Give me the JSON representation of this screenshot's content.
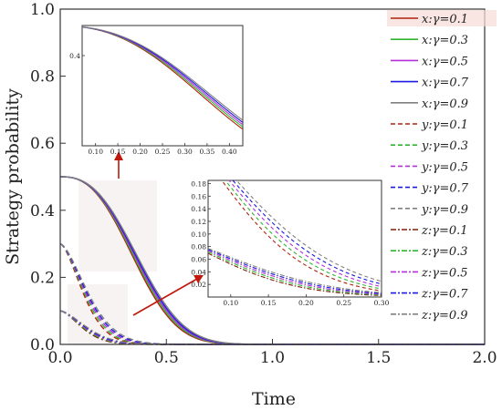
{
  "chart_data": {
    "type": "line",
    "xlabel": "Time",
    "ylabel": "Strategy probability",
    "xlim": [
      0,
      2
    ],
    "ylim": [
      0,
      1
    ],
    "xticks": [
      0.0,
      0.5,
      1.0,
      1.5,
      2.0
    ],
    "xtick_labels": [
      "0.0",
      "0.5",
      "1.0",
      "1.5",
      "2.0"
    ],
    "yticks": [
      0.0,
      0.2,
      0.4,
      0.6,
      0.8,
      1.0
    ],
    "ytick_labels": [
      "0.0",
      "0.2",
      "0.4",
      "0.6",
      "0.8",
      "1.0"
    ],
    "grid": false,
    "legend_position": "right",
    "series": [
      {
        "name": "x:γ=0.1",
        "group": "x",
        "gamma": 0.1,
        "color": "#b0220e",
        "dash": "solid",
        "x0": 0.5,
        "k": 0.31,
        "n": 2.6,
        "highlight": true
      },
      {
        "name": "x:γ=0.3",
        "group": "x",
        "gamma": 0.3,
        "color": "#2fb52f",
        "dash": "solid",
        "x0": 0.5,
        "k": 0.315,
        "n": 2.6,
        "highlight": false
      },
      {
        "name": "x:γ=0.5",
        "group": "x",
        "gamma": 0.5,
        "color": "#b52fd9",
        "dash": "solid",
        "x0": 0.5,
        "k": 0.32,
        "n": 2.6,
        "highlight": false
      },
      {
        "name": "x:γ=0.7",
        "group": "x",
        "gamma": 0.7,
        "color": "#1a1ae0",
        "dash": "solid",
        "x0": 0.5,
        "k": 0.325,
        "n": 2.6,
        "highlight": false
      },
      {
        "name": "x:γ=0.9",
        "group": "x",
        "gamma": 0.9,
        "color": "#808080",
        "dash": "solid",
        "x0": 0.5,
        "k": 0.33,
        "n": 2.6,
        "highlight": false
      },
      {
        "name": "y:γ=0.1",
        "group": "y",
        "gamma": 0.1,
        "color": "#b0220e",
        "dash": "dash",
        "x0": 0.3,
        "k": 0.09,
        "n": 1.6,
        "highlight": false
      },
      {
        "name": "y:γ=0.3",
        "group": "y",
        "gamma": 0.3,
        "color": "#2fb52f",
        "dash": "dash",
        "x0": 0.3,
        "k": 0.095,
        "n": 1.6,
        "highlight": false
      },
      {
        "name": "y:γ=0.5",
        "group": "y",
        "gamma": 0.5,
        "color": "#b52fd9",
        "dash": "dash",
        "x0": 0.3,
        "k": 0.1,
        "n": 1.6,
        "highlight": false
      },
      {
        "name": "y:γ=0.7",
        "group": "y",
        "gamma": 0.7,
        "color": "#1a1ae0",
        "dash": "dash",
        "x0": 0.3,
        "k": 0.105,
        "n": 1.6,
        "highlight": false
      },
      {
        "name": "y:γ=0.9",
        "group": "y",
        "gamma": 0.9,
        "color": "#808080",
        "dash": "dash",
        "x0": 0.3,
        "k": 0.11,
        "n": 1.6,
        "highlight": false
      },
      {
        "name": "z:γ=0.1",
        "group": "z",
        "gamma": 0.1,
        "color": "#7a1e0a",
        "dash": "dashdot",
        "x0": 0.1,
        "k": 0.085,
        "n": 1.6,
        "highlight": false
      },
      {
        "name": "z:γ=0.3",
        "group": "z",
        "gamma": 0.3,
        "color": "#2fb52f",
        "dash": "dashdot",
        "x0": 0.1,
        "k": 0.09,
        "n": 1.6,
        "highlight": false
      },
      {
        "name": "z:γ=0.5",
        "group": "z",
        "gamma": 0.5,
        "color": "#b52fd9",
        "dash": "dashdot",
        "x0": 0.1,
        "k": 0.095,
        "n": 1.6,
        "highlight": false
      },
      {
        "name": "z:γ=0.7",
        "group": "z",
        "gamma": 0.7,
        "color": "#1a1ae0",
        "dash": "dashdot",
        "x0": 0.1,
        "k": 0.1,
        "n": 1.6,
        "highlight": false
      },
      {
        "name": "z:γ=0.9",
        "group": "z",
        "gamma": 0.9,
        "color": "#808080",
        "dash": "dashdot",
        "x0": 0.1,
        "k": 0.105,
        "n": 1.6,
        "highlight": false
      }
    ],
    "inset_top": {
      "xlim": [
        0.07,
        0.43
      ],
      "ylim": [
        0.1,
        0.5
      ],
      "xticks": [
        0.1,
        0.15,
        0.2,
        0.25,
        0.3,
        0.35,
        0.4
      ],
      "xtick_labels": [
        "0.10",
        "0.15",
        "0.20",
        "0.25",
        "0.30",
        "0.35",
        "0.40"
      ],
      "yticks": [
        0.4
      ],
      "ytick_labels": [
        "0.4"
      ],
      "groups": [
        "x"
      ]
    },
    "inset_right": {
      "xlim": [
        0.07,
        0.3
      ],
      "ylim": [
        0.0,
        0.185
      ],
      "xticks": [
        0.1,
        0.15,
        0.2,
        0.25,
        0.3
      ],
      "xtick_labels": [
        "0.10",
        "0.15",
        "0.20",
        "0.25",
        "0.30"
      ],
      "yticks": [
        0.02,
        0.04,
        0.06,
        0.08,
        0.1,
        0.12,
        0.14,
        0.16,
        0.18
      ],
      "ytick_labels": [
        "0.02",
        "0.04",
        "0.06",
        "0.08",
        "0.10",
        "0.12",
        "0.14",
        "0.16",
        "0.18"
      ],
      "groups": [
        "y",
        "z"
      ]
    }
  }
}
